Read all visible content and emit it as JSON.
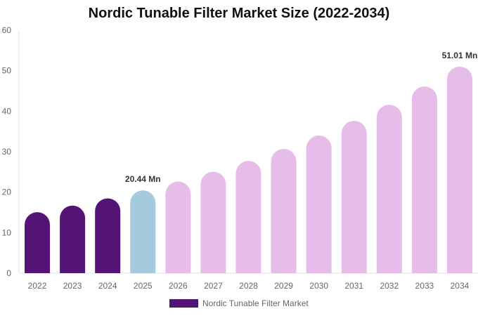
{
  "chart_data": {
    "type": "bar",
    "title": "Nordic Tunable Filter Market Size (2022-2034)",
    "categories": [
      "2022",
      "2023",
      "2024",
      "2025",
      "2026",
      "2027",
      "2028",
      "2029",
      "2030",
      "2031",
      "2032",
      "2033",
      "2034"
    ],
    "series": [
      {
        "name": "Nordic Tunable Filter Market",
        "values": [
          15.07,
          16.68,
          18.47,
          20.44,
          22.63,
          25.05,
          27.73,
          30.7,
          33.98,
          37.6,
          41.6,
          46.1,
          51.01
        ]
      }
    ],
    "data_labels": {
      "2025": "20.44 Mn",
      "2034": "51.01 Mn"
    },
    "ylim": [
      0,
      60
    ],
    "yticks": [
      0,
      10,
      20,
      30,
      40,
      50,
      60
    ],
    "grid": false,
    "legend": "bottom",
    "colors": {
      "historical": "#541475",
      "current": "#a5cade",
      "forecast": "#e6bde8"
    }
  }
}
